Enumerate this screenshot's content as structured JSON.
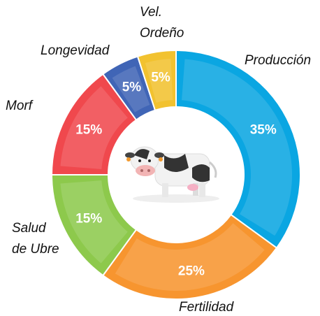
{
  "chart_data": {
    "type": "donut",
    "categories": [
      "Producción",
      "Fertilidad",
      "Salud\nde Ubre",
      "Morf",
      "Longevidad",
      "Vel.\nOrdeño"
    ],
    "values": [
      35,
      25,
      15,
      15,
      5,
      5
    ],
    "value_labels": [
      "35%",
      "25%",
      "15%",
      "15%",
      "5%",
      "5%"
    ],
    "colors": [
      "#0aa6e2",
      "#f7952f",
      "#8dc94c",
      "#f0484d",
      "#4065b6",
      "#f2c22f"
    ]
  }
}
